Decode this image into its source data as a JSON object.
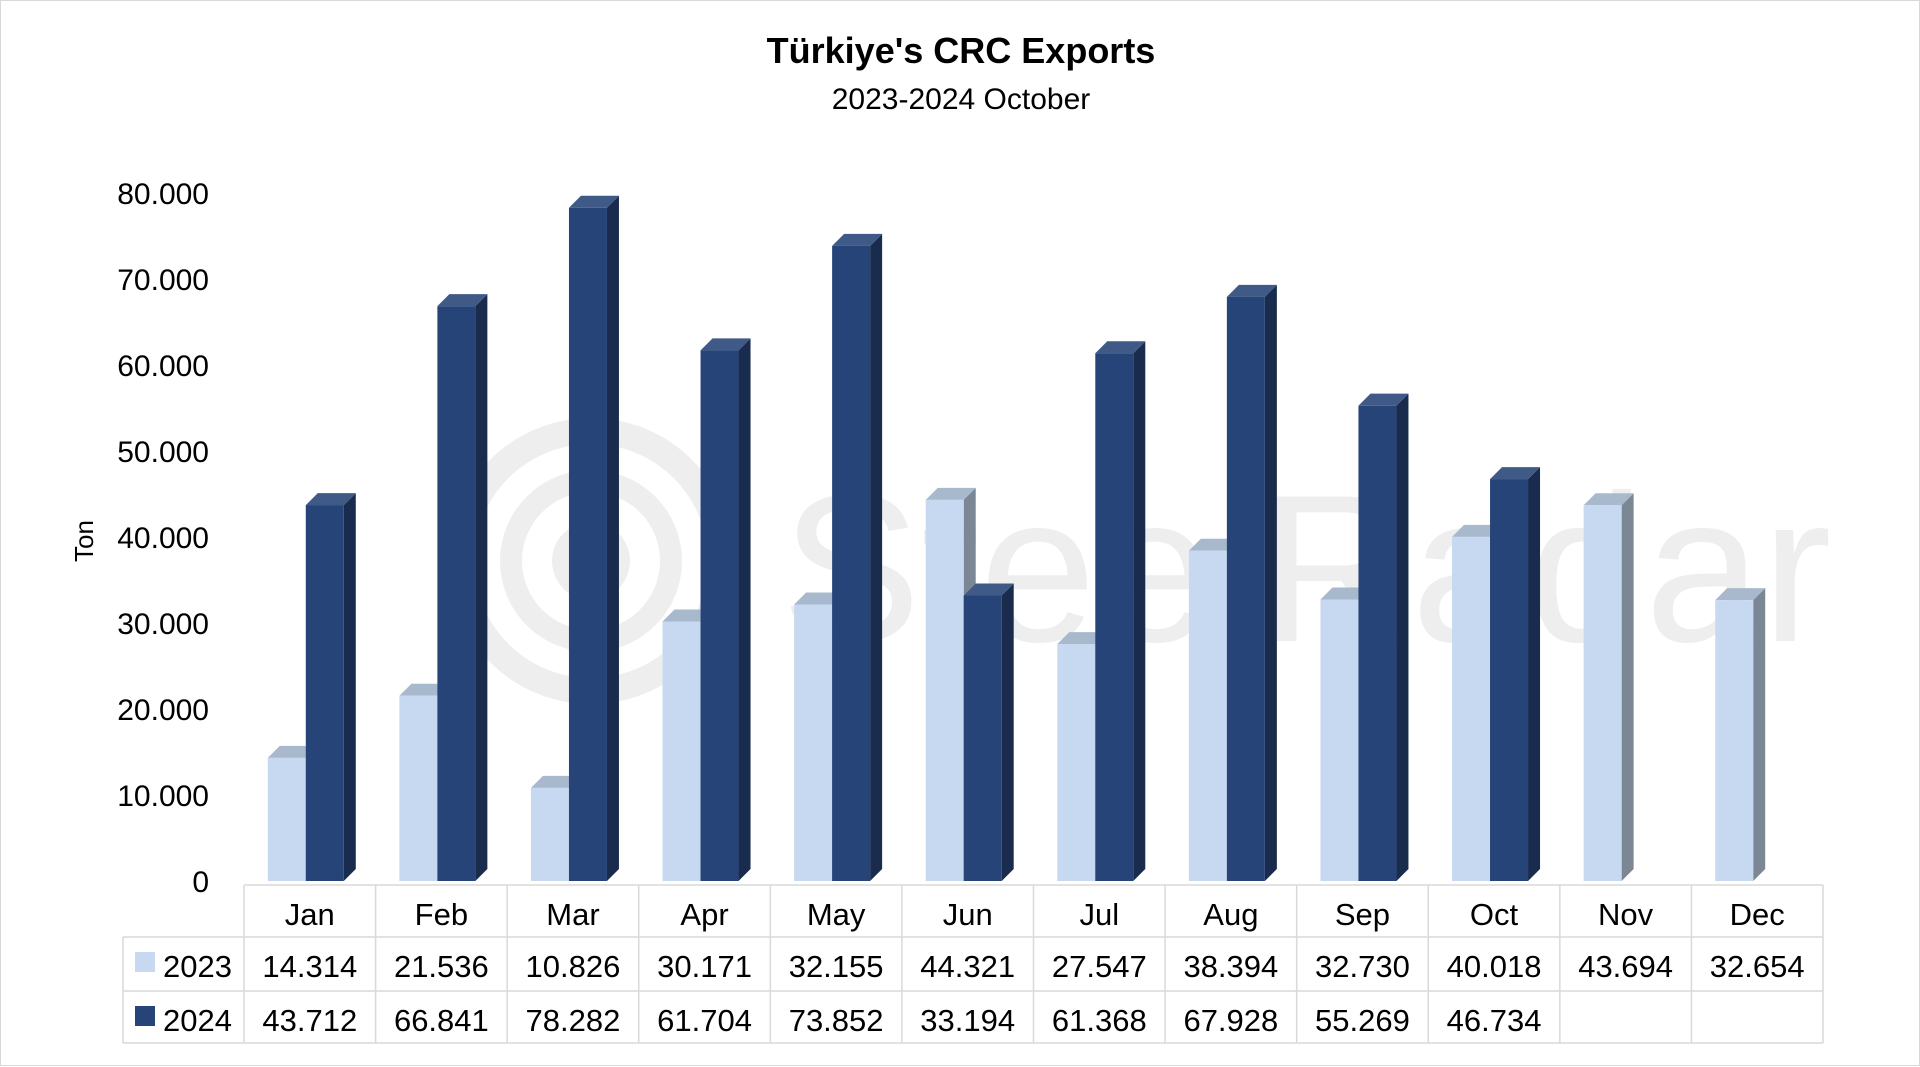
{
  "chart_data": {
    "type": "bar",
    "title": "Türkiye's CRC Exports",
    "subtitle": "2023-2024 October",
    "ylabel": "Ton",
    "ylim": [
      0,
      80000
    ],
    "yticks": [
      "0",
      "10.000",
      "20.000",
      "30.000",
      "40.000",
      "50.000",
      "60.000",
      "70.000",
      "80.000"
    ],
    "categories": [
      "Jan",
      "Feb",
      "Mar",
      "Apr",
      "May",
      "Jun",
      "Jul",
      "Aug",
      "Sep",
      "Oct",
      "Nov",
      "Dec"
    ],
    "series": [
      {
        "name": "2023",
        "color": "#c6d9f1",
        "values": [
          14314,
          21536,
          10826,
          30171,
          32155,
          44321,
          27547,
          38394,
          32730,
          40018,
          43694,
          32654
        ],
        "labels": [
          "14.314",
          "21.536",
          "10.826",
          "30.171",
          "32.155",
          "44.321",
          "27.547",
          "38.394",
          "32.730",
          "40.018",
          "43.694",
          "32.654"
        ]
      },
      {
        "name": "2024",
        "color": "#264478",
        "values": [
          43712,
          66841,
          78282,
          61704,
          73852,
          33194,
          61368,
          67928,
          55269,
          46734,
          null,
          null
        ],
        "labels": [
          "43.712",
          "66.841",
          "78.282",
          "61.704",
          "73.852",
          "33.194",
          "61.368",
          "67.928",
          "55.269",
          "46.734",
          "",
          ""
        ]
      }
    ],
    "legend": "data-table",
    "grid": false,
    "watermark": "SteelRadar"
  }
}
